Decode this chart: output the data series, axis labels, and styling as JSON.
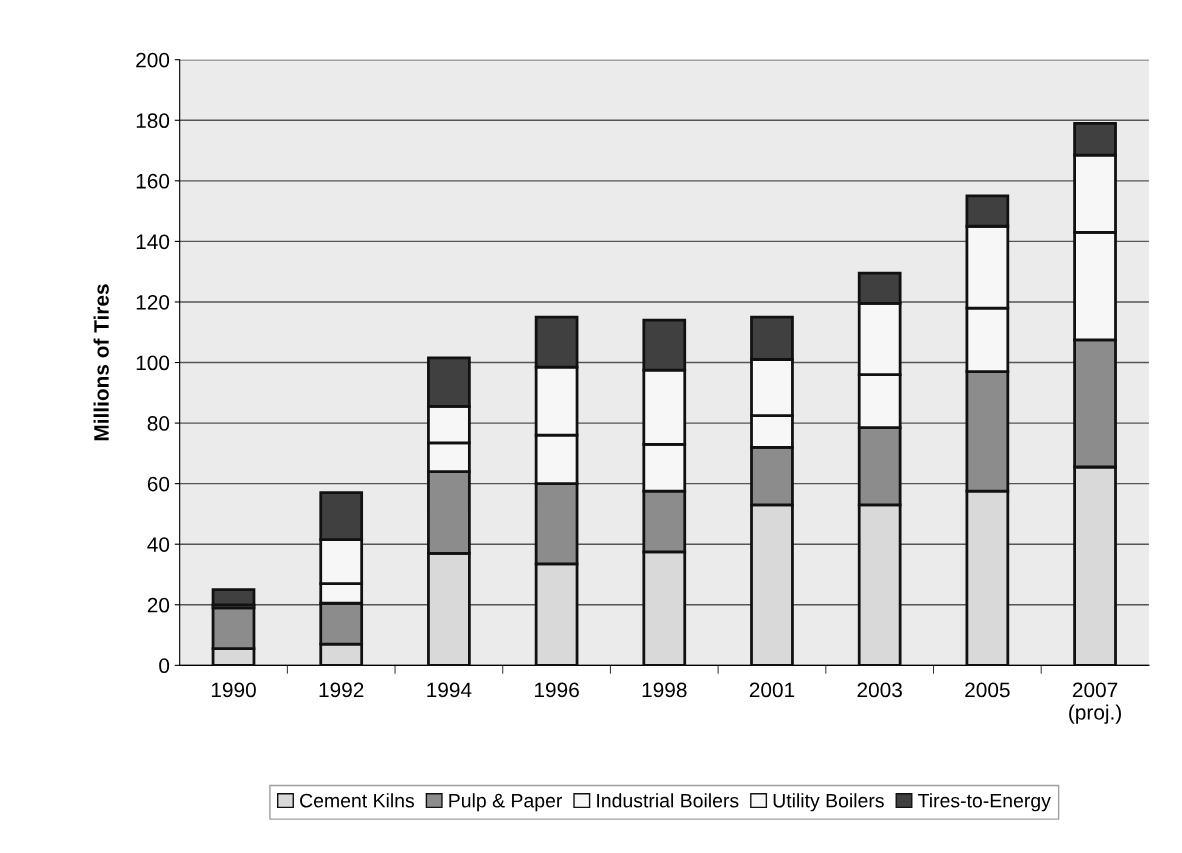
{
  "chart_data": {
    "type": "bar",
    "stacked": true,
    "ylabel": "Millions of Tires",
    "categories": [
      "1990",
      "1992",
      "1994",
      "1996",
      "1998",
      "2001",
      "2003",
      "2005",
      "2007\n(proj.)"
    ],
    "series": [
      {
        "name": "Cement Kilns",
        "color": "#d9d9d9",
        "values": [
          5.5,
          7,
          37,
          33.5,
          37.5,
          53,
          53,
          57.5,
          65.5
        ]
      },
      {
        "name": "Pulp & Paper",
        "color": "#8c8c8c",
        "values": [
          13.5,
          13.5,
          27,
          26.5,
          20,
          19,
          25.5,
          39.5,
          42
        ]
      },
      {
        "name": "Industrial Boilers",
        "color": "#f7f7f7",
        "values": [
          1,
          6.5,
          9.5,
          16,
          15.5,
          10.5,
          17.5,
          21,
          35.5
        ]
      },
      {
        "name": "Utility Boilers",
        "color": "#f7f7f7",
        "values": [
          0,
          14.5,
          12,
          22.5,
          24.5,
          18.5,
          23.5,
          27,
          25.5
        ]
      },
      {
        "name": "Tires-to-Energy",
        "color": "#404040",
        "values": [
          5,
          15.5,
          16,
          16.5,
          16.5,
          14,
          10,
          10,
          10.5
        ]
      }
    ],
    "ylim": [
      0,
      200
    ],
    "yticks": [
      0,
      20,
      40,
      60,
      80,
      100,
      120,
      140,
      160,
      180,
      200
    ],
    "grid": "y",
    "legend": "bottom"
  }
}
